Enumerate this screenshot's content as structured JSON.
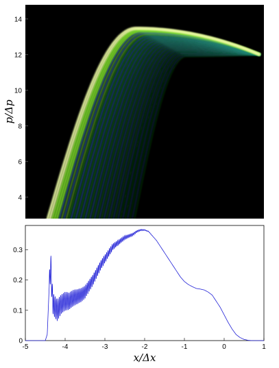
{
  "chart_data": [
    {
      "type": "heatmap",
      "ylabel": "p/Δp",
      "xlabel": "",
      "ylim": [
        2.8,
        14.8
      ],
      "xlim": [
        -5,
        1
      ],
      "yticks": [
        "4",
        "6",
        "8",
        "10",
        "12",
        "14"
      ],
      "colormap": [
        "#000000",
        "#0b2a8c",
        "#2f6fd8",
        "#1fa31f",
        "#7cdc2a",
        "#e8f7a0"
      ],
      "background": "#000000",
      "fringe_count": 38,
      "fringe_x_range": [
        -4.48,
        0.95
      ],
      "fringe_peak_p": 13.5,
      "fringe_tip": {
        "x": 0.9,
        "p": 12.0
      }
    },
    {
      "type": "line",
      "xlabel": "x/Δx",
      "ylabel": "",
      "xlim": [
        -5,
        1
      ],
      "ylim": [
        0,
        0.38
      ],
      "xticks": [
        "-5",
        "-4",
        "-3",
        "-2",
        "-1",
        "0",
        "1"
      ],
      "yticks": [
        "0",
        "0.1",
        "0.2",
        "0.3"
      ],
      "series": [
        {
          "color": "#1f1fd6",
          "x": [
            -5.0,
            -4.5,
            -4.45,
            -4.4,
            -4.36,
            -4.33,
            -4.3,
            -4.25,
            -4.2,
            -4.1,
            -4.0,
            -3.9,
            -3.8,
            -3.7,
            -3.6,
            -3.5,
            -3.4,
            -3.3,
            -3.2,
            -3.1,
            -3.0,
            -2.9,
            -2.8,
            -2.7,
            -2.6,
            -2.5,
            -2.4,
            -2.3,
            -2.2,
            -2.1,
            -2.0,
            -1.9,
            -1.8,
            -1.7,
            -1.6,
            -1.5,
            -1.4,
            -1.3,
            -1.2,
            -1.1,
            -1.0,
            -0.9,
            -0.8,
            -0.7,
            -0.6,
            -0.5,
            -0.4,
            -0.3,
            -0.2,
            -0.1,
            0.0,
            0.1,
            0.2,
            0.3,
            0.4,
            0.5,
            0.6,
            0.7,
            0.8,
            1.0
          ],
          "values": [
            0.0,
            0.0,
            0.02,
            0.18,
            0.25,
            0.16,
            0.12,
            0.11,
            0.1,
            0.12,
            0.13,
            0.13,
            0.14,
            0.145,
            0.15,
            0.16,
            0.18,
            0.2,
            0.225,
            0.25,
            0.27,
            0.29,
            0.31,
            0.32,
            0.33,
            0.34,
            0.345,
            0.35,
            0.36,
            0.365,
            0.365,
            0.36,
            0.345,
            0.33,
            0.31,
            0.29,
            0.27,
            0.25,
            0.23,
            0.21,
            0.195,
            0.185,
            0.178,
            0.172,
            0.17,
            0.167,
            0.16,
            0.15,
            0.13,
            0.11,
            0.085,
            0.06,
            0.038,
            0.02,
            0.01,
            0.004,
            0.001,
            0.0,
            0.0,
            0.0
          ]
        }
      ],
      "oscillation": {
        "x_range": [
          -4.4,
          -1.6
        ],
        "start_amplitude": 0.04,
        "period": 0.035
      }
    }
  ]
}
